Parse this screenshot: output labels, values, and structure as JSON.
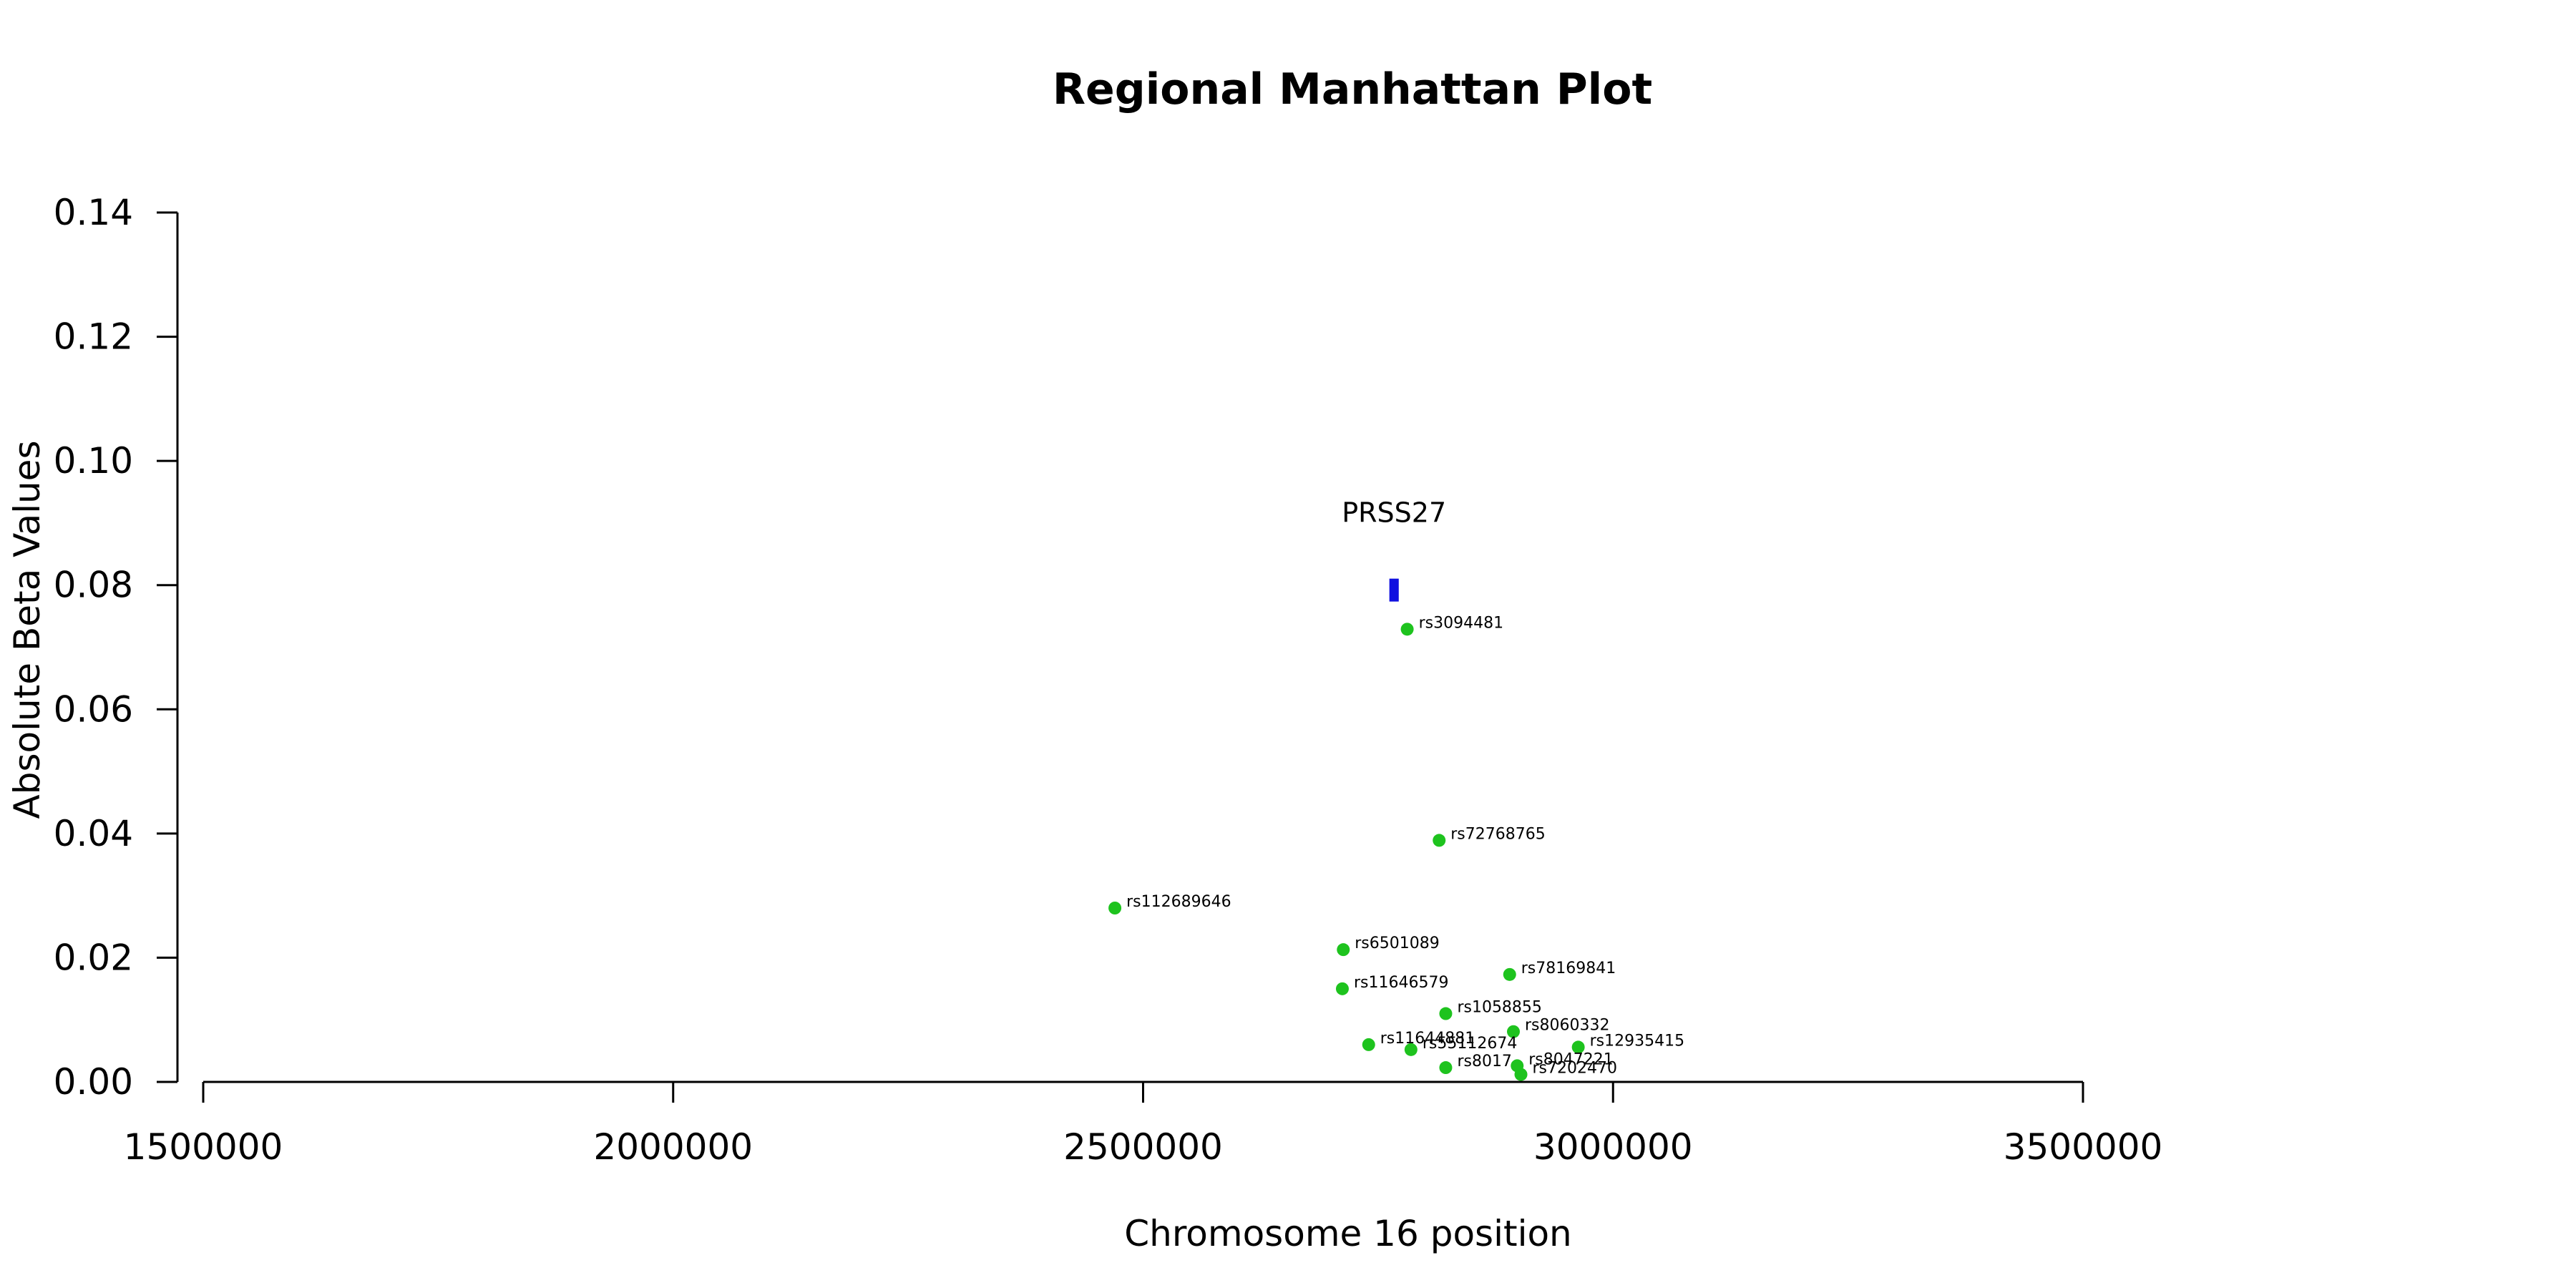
{
  "chart_data": {
    "type": "scatter",
    "title": "Regional Manhattan Plot",
    "xlabel": "Chromosome 16 position",
    "ylabel": "Absolute Beta Values",
    "xlim": [
      1500000,
      3500000
    ],
    "ylim": [
      0,
      0.14
    ],
    "xticks": [
      "1500000",
      "2000000",
      "2500000",
      "3000000",
      "3500000"
    ],
    "yticks": [
      "0.00",
      "0.02",
      "0.04",
      "0.06",
      "0.08",
      "0.10",
      "0.12",
      "0.14"
    ],
    "grid": false,
    "point_color": "#1ec31e",
    "gene_color": "#1010e0",
    "points": [
      {
        "label": "rs3094481",
        "x": 2781000,
        "y": 0.0729
      },
      {
        "label": "rs72768765",
        "x": 2815000,
        "y": 0.0389
      },
      {
        "label": "rs112689646",
        "x": 2470000,
        "y": 0.028
      },
      {
        "label": "rs6501089",
        "x": 2713000,
        "y": 0.0213
      },
      {
        "label": "rs78169841",
        "x": 2890000,
        "y": 0.0173
      },
      {
        "label": "rs11646579",
        "x": 2712000,
        "y": 0.015
      },
      {
        "label": "rs1058855",
        "x": 2822000,
        "y": 0.011
      },
      {
        "label": "rs8060332",
        "x": 2894000,
        "y": 0.0081
      },
      {
        "label": "rs11644881",
        "x": 2740000,
        "y": 0.006
      },
      {
        "label": "rs12935415",
        "x": 2963000,
        "y": 0.0056
      },
      {
        "label": "rs55112674",
        "x": 2785000,
        "y": 0.0052
      },
      {
        "label": "rs8047221",
        "x": 2898000,
        "y": 0.0026
      },
      {
        "label": "rs8017",
        "x": 2822000,
        "y": 0.0023
      },
      {
        "label": "rs7202470",
        "x": 2902000,
        "y": 0.0012
      }
    ],
    "gene": {
      "name": "PRSS27",
      "start": 2762000,
      "end": 2772000,
      "y": 0.0792
    }
  }
}
